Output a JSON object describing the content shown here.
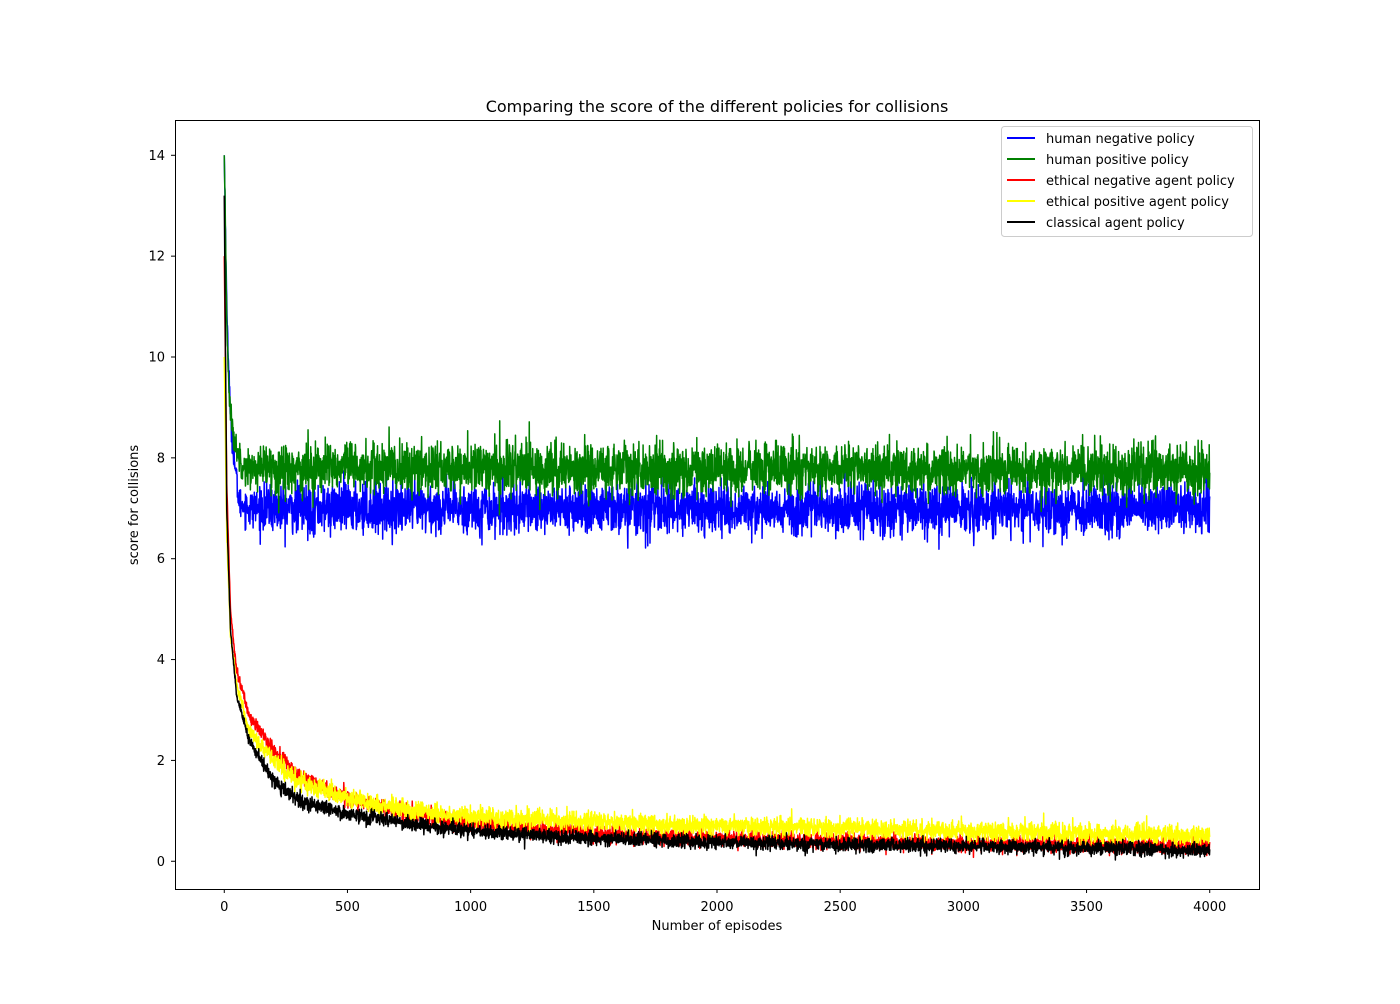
{
  "chart_data": {
    "type": "line",
    "title": "Comparing the score of the different policies for collisions",
    "xlabel": "Number of episodes",
    "ylabel": "score for collisions",
    "xlim": [
      -200,
      4200
    ],
    "ylim": [
      -0.55,
      14.7
    ],
    "x_ticks": [
      0,
      500,
      1000,
      1500,
      2000,
      2500,
      3000,
      3500,
      4000
    ],
    "x_tick_labels": [
      "0",
      "500",
      "1000",
      "1500",
      "2000",
      "2500",
      "3000",
      "3500",
      "4000"
    ],
    "y_ticks": [
      0,
      2,
      4,
      6,
      8,
      10,
      12,
      14
    ],
    "y_tick_labels": [
      "0",
      "2",
      "4",
      "6",
      "8",
      "10",
      "12",
      "14"
    ],
    "grid": false,
    "legend_position": "top-right",
    "x_range": [
      0,
      4000
    ],
    "series": [
      {
        "name": "human negative policy",
        "color": "#0000ff",
        "trend": [
          [
            0,
            14.0
          ],
          [
            10,
            11.0
          ],
          [
            25,
            8.8
          ],
          [
            40,
            8.0
          ],
          [
            60,
            7.1
          ],
          [
            100,
            7.0
          ],
          [
            4000,
            7.0
          ]
        ],
        "noise_amplitude": 0.25,
        "peak_values": [
          8.3,
          7.9,
          7.7
        ],
        "trough_values": [
          6.15,
          6.2,
          6.2
        ]
      },
      {
        "name": "human positive policy",
        "color": "#008000",
        "trend": [
          [
            0,
            14.0
          ],
          [
            10,
            10.8
          ],
          [
            20,
            9.2
          ],
          [
            40,
            8.3
          ],
          [
            80,
            7.8
          ],
          [
            4000,
            7.75
          ]
        ],
        "noise_amplitude": 0.25,
        "peak_values": [
          8.8,
          8.7,
          8.6
        ],
        "trough_values": [
          6.8,
          6.9,
          6.9
        ]
      },
      {
        "name": "ethical negative agent policy",
        "color": "#ff0000",
        "trend": [
          [
            0,
            12.0
          ],
          [
            10,
            7.5
          ],
          [
            25,
            5.0
          ],
          [
            50,
            3.8
          ],
          [
            100,
            2.9
          ],
          [
            200,
            2.2
          ],
          [
            300,
            1.7
          ],
          [
            500,
            1.25
          ],
          [
            750,
            0.95
          ],
          [
            1000,
            0.75
          ],
          [
            1500,
            0.55
          ],
          [
            2000,
            0.45
          ],
          [
            2500,
            0.4
          ],
          [
            3000,
            0.35
          ],
          [
            3500,
            0.33
          ],
          [
            4000,
            0.3
          ]
        ],
        "noise_amplitude": 0.08
      },
      {
        "name": "ethical positive agent policy",
        "color": "#ffff00",
        "trend": [
          [
            0,
            10.0
          ],
          [
            10,
            6.5
          ],
          [
            25,
            4.5
          ],
          [
            50,
            3.5
          ],
          [
            100,
            2.6
          ],
          [
            200,
            2.0
          ],
          [
            300,
            1.6
          ],
          [
            500,
            1.25
          ],
          [
            750,
            1.0
          ],
          [
            1000,
            0.88
          ],
          [
            1500,
            0.78
          ],
          [
            2000,
            0.7
          ],
          [
            2500,
            0.65
          ],
          [
            3000,
            0.6
          ],
          [
            3500,
            0.55
          ],
          [
            4000,
            0.52
          ]
        ],
        "noise_amplitude": 0.1
      },
      {
        "name": "classical agent policy",
        "color": "#000000",
        "trend": [
          [
            0,
            13.2
          ],
          [
            10,
            7.0
          ],
          [
            25,
            4.6
          ],
          [
            50,
            3.3
          ],
          [
            100,
            2.4
          ],
          [
            200,
            1.6
          ],
          [
            300,
            1.2
          ],
          [
            500,
            0.95
          ],
          [
            750,
            0.75
          ],
          [
            1000,
            0.6
          ],
          [
            1500,
            0.45
          ],
          [
            2000,
            0.38
          ],
          [
            2500,
            0.33
          ],
          [
            3000,
            0.3
          ],
          [
            3500,
            0.26
          ],
          [
            4000,
            0.22
          ]
        ],
        "noise_amplitude": 0.07
      }
    ]
  }
}
